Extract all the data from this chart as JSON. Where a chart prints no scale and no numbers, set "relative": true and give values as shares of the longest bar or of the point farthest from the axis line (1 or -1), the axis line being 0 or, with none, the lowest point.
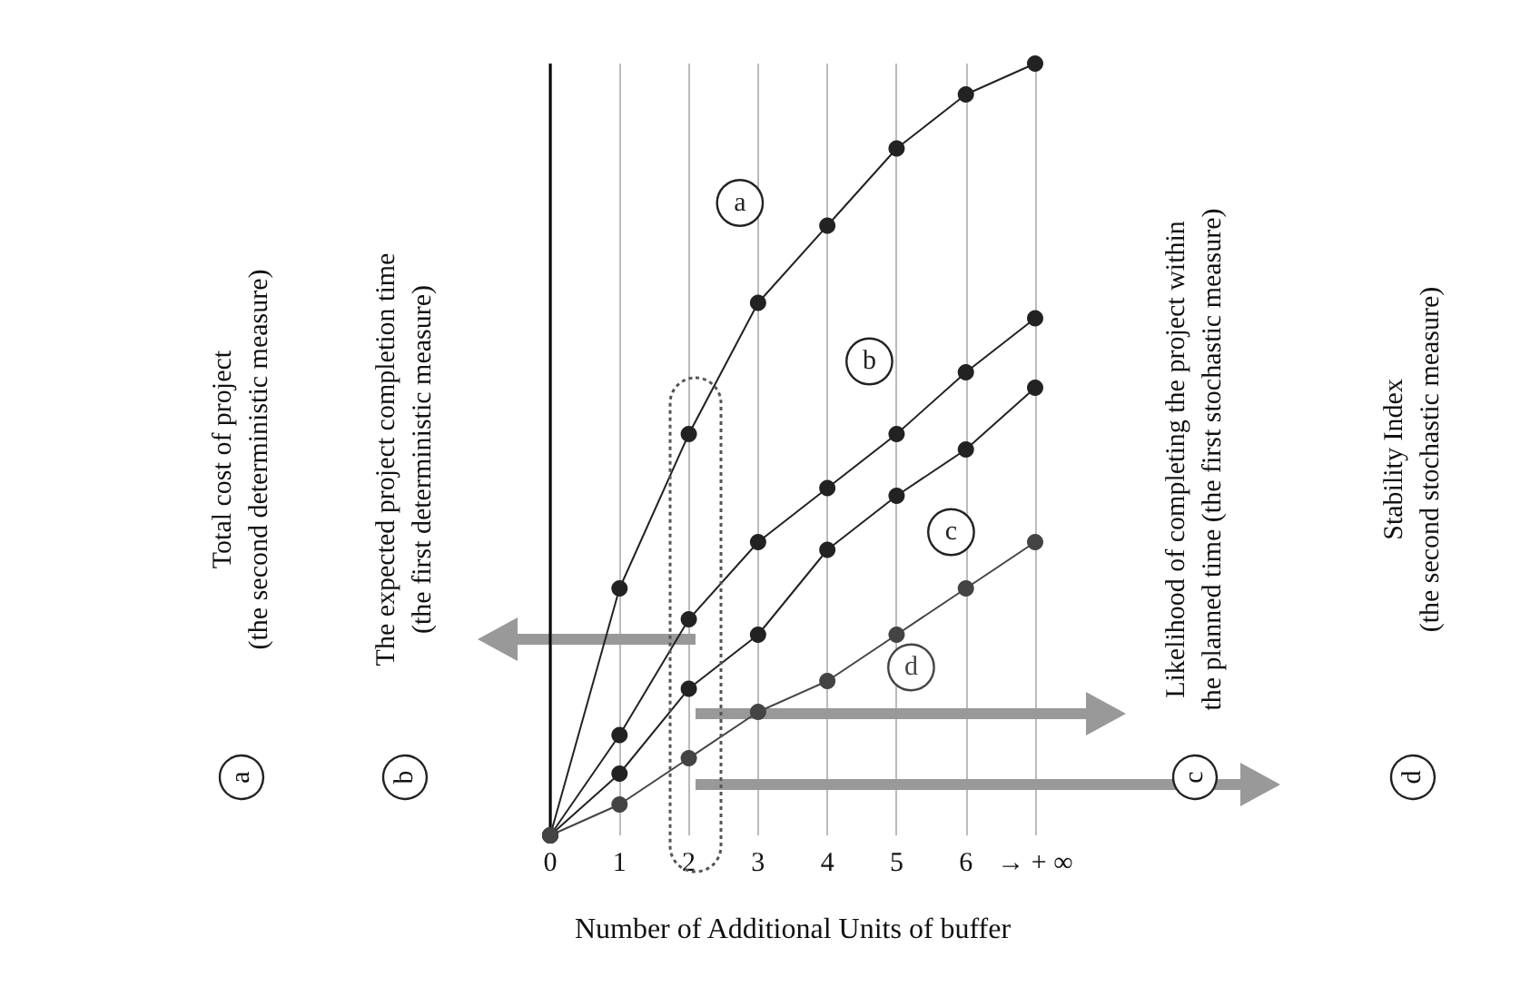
{
  "chart_data": {
    "type": "line",
    "relative": true,
    "xlabel": "Number of Additional Units of buffer",
    "categories": [
      "0",
      "1",
      "2",
      "3",
      "4",
      "5",
      "6",
      "→ + ∞"
    ],
    "series": [
      {
        "name": "a",
        "color": "#222222",
        "values": [
          0,
          0.32,
          0.52,
          0.69,
          0.79,
          0.89,
          0.96,
          1
        ]
      },
      {
        "name": "b",
        "color": "#222222",
        "values": [
          0,
          0.13,
          0.28,
          0.38,
          0.45,
          0.52,
          0.6,
          0.67
        ]
      },
      {
        "name": "c",
        "color": "#222222",
        "values": [
          0,
          0.08,
          0.19,
          0.26,
          0.37,
          0.44,
          0.5,
          0.58
        ]
      },
      {
        "name": "d",
        "color": "#444444",
        "values": [
          0,
          0.04,
          0.1,
          0.16,
          0.2,
          0.26,
          0.32,
          0.38
        ]
      }
    ],
    "annotations": [
      "Total cost of project\n(the second deterministic measure)",
      "The expected project completion time\n(the first deterministic measure)",
      "Likelihood of completing the project within\nthe planned time (the first stochastic measure)",
      "Stability Index\n(the second stochastic measure)"
    ],
    "ref_lines": [
      {
        "axis": "x",
        "value": "0",
        "color": "#000000"
      }
    ],
    "grid": "x",
    "marker": "circle",
    "line_style": "solid",
    "legend": false
  }
}
